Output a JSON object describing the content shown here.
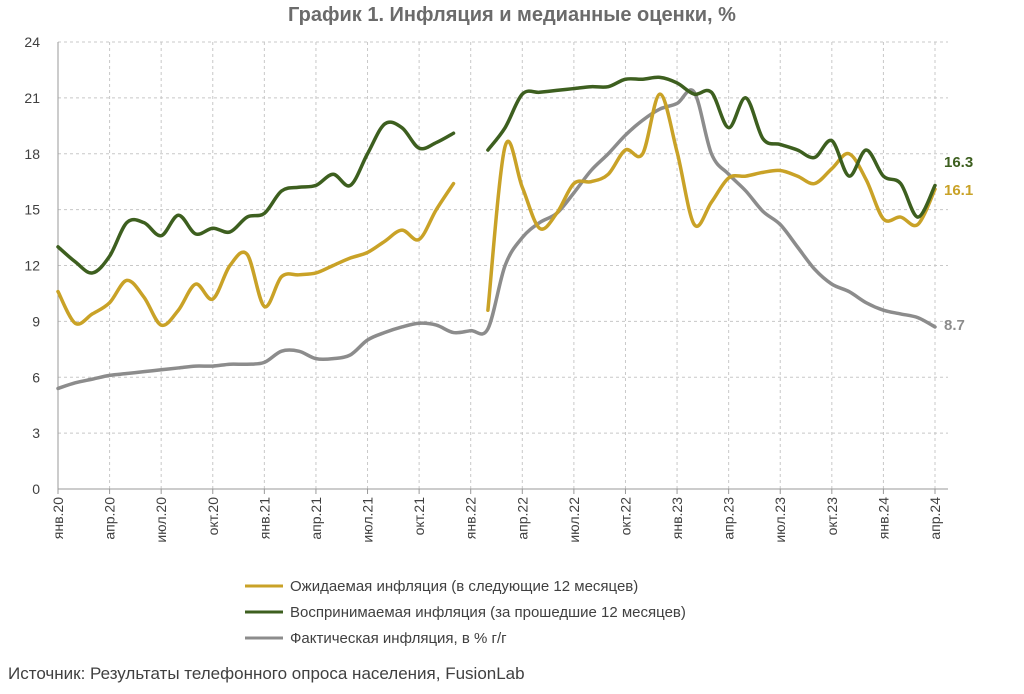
{
  "chart_data": {
    "type": "line",
    "title": "График 1. Инфляция и медианные оценки, %",
    "xlabel": "",
    "ylabel": "",
    "ylim": [
      0,
      24
    ],
    "yticks": [
      0,
      3,
      6,
      9,
      12,
      15,
      18,
      21,
      24
    ],
    "grid": true,
    "legend_position": "bottom",
    "x": [
      "янв.20",
      "фев.20",
      "мар.20",
      "апр.20",
      "май.20",
      "июн.20",
      "июл.20",
      "авг.20",
      "сен.20",
      "окт.20",
      "ноя.20",
      "дек.20",
      "янв.21",
      "фев.21",
      "мар.21",
      "апр.21",
      "май.21",
      "июн.21",
      "июл.21",
      "авг.21",
      "сен.21",
      "окт.21",
      "ноя.21",
      "дек.21",
      "янв.22",
      "фев.22",
      "мар.22",
      "апр.22",
      "май.22",
      "июн.22",
      "июл.22",
      "авг.22",
      "сен.22",
      "окт.22",
      "ноя.22",
      "дек.22",
      "янв.23",
      "фев.23",
      "мар.23",
      "апр.23",
      "май.23",
      "июн.23",
      "июл.23",
      "авг.23",
      "сен.23",
      "окт.23",
      "ноя.23",
      "дек.23",
      "янв.24",
      "фев.24",
      "мар.24",
      "апр.24"
    ],
    "xtick_labels": [
      "янв.20",
      "апр.20",
      "июл.20",
      "окт.20",
      "янв.21",
      "апр.21",
      "июл.21",
      "окт.21",
      "янв.22",
      "апр.22",
      "июл.22",
      "окт.22",
      "янв.23",
      "апр.23",
      "июл.23",
      "окт.23",
      "янв.24",
      "апр.24"
    ],
    "series": [
      {
        "name": "Ожидаемая инфляция (в следующие 12 месяцев)",
        "color": "#C9A227",
        "end_label": "16.1",
        "values": [
          10.6,
          8.9,
          9.4,
          10.0,
          11.2,
          10.3,
          8.8,
          9.6,
          11.0,
          10.2,
          12.0,
          12.6,
          9.8,
          11.4,
          11.5,
          11.6,
          12.0,
          12.4,
          12.7,
          13.3,
          13.9,
          13.4,
          15.0,
          16.4,
          null,
          9.6,
          18.4,
          16.2,
          14.0,
          14.8,
          16.4,
          16.5,
          16.9,
          18.2,
          18.0,
          21.2,
          18.1,
          14.2,
          15.4,
          16.7,
          16.8,
          17.0,
          17.1,
          16.8,
          16.4,
          17.2,
          18.0,
          16.6,
          14.5,
          14.6,
          14.2,
          16.1
        ]
      },
      {
        "name": "Воспринимаемая инфляция (за прошедшие 12 месяцев)",
        "color": "#3D5F1F",
        "end_label": "16.3",
        "values": [
          13.0,
          12.2,
          11.6,
          12.5,
          14.3,
          14.3,
          13.6,
          14.7,
          13.7,
          14.0,
          13.8,
          14.6,
          14.8,
          16.0,
          16.2,
          16.3,
          16.9,
          16.3,
          18.0,
          19.6,
          19.4,
          18.3,
          18.6,
          19.1,
          null,
          18.2,
          19.4,
          21.2,
          21.3,
          21.4,
          21.5,
          21.6,
          21.6,
          22.0,
          22.0,
          22.1,
          21.8,
          21.2,
          21.3,
          19.4,
          21.0,
          18.8,
          18.5,
          18.2,
          17.8,
          18.7,
          16.8,
          18.2,
          16.8,
          16.4,
          14.6,
          16.3
        ]
      },
      {
        "name": "Фактическая инфляция, в % г/г",
        "color": "#8C8C8C",
        "end_label": "8.7",
        "values": [
          5.4,
          5.7,
          5.9,
          6.1,
          6.2,
          6.3,
          6.4,
          6.5,
          6.6,
          6.6,
          6.7,
          6.7,
          6.8,
          7.4,
          7.4,
          7.0,
          7.0,
          7.2,
          8.0,
          8.4,
          8.7,
          8.9,
          8.8,
          8.4,
          8.5,
          8.6,
          12.0,
          13.5,
          14.3,
          14.8,
          15.9,
          17.1,
          18.0,
          19.0,
          19.8,
          20.4,
          20.7,
          21.3,
          18.0,
          16.9,
          16.0,
          14.9,
          14.2,
          13.0,
          11.8,
          11.0,
          10.6,
          10.0,
          9.6,
          9.4,
          9.2,
          8.7
        ]
      }
    ]
  },
  "footer": "Источник: Результаты телефонного опроса населения, FusionLab"
}
